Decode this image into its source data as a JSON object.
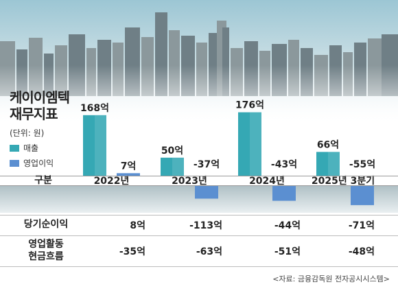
{
  "title_line1": "케이이엠텍",
  "title_line2": "재무지표",
  "unit_label": "(단위: 원)",
  "legend": [
    {
      "label": "매출",
      "color": "#35a8b4"
    },
    {
      "label": "영업이익",
      "color": "#5b8fd1"
    }
  ],
  "header": {
    "label": "구분"
  },
  "rows": [
    {
      "label": "당기순이익",
      "values": [
        "8억",
        "-113억",
        "-44억",
        "-71억"
      ]
    },
    {
      "label_line1": "영업활동",
      "label_line2": "현금흐름",
      "values": [
        "-35억",
        "-63억",
        "-51억",
        "-48억"
      ]
    }
  ],
  "source": "<자료: 금융감독원 전자공시시스템>",
  "chart_data": {
    "type": "bar",
    "categories": [
      "2022년",
      "2023년",
      "2024년",
      "2025년 3분기"
    ],
    "series": [
      {
        "name": "매출",
        "values": [
          168,
          50,
          176,
          66
        ],
        "labels": [
          "168억",
          "50억",
          "176억",
          "66억"
        ],
        "color": "#35a8b4"
      },
      {
        "name": "영업이익",
        "values": [
          7,
          -37,
          -43,
          -55
        ],
        "labels": [
          "7억",
          "-37억",
          "-43억",
          "-55억"
        ],
        "color": "#5b8fd1"
      }
    ]
  }
}
